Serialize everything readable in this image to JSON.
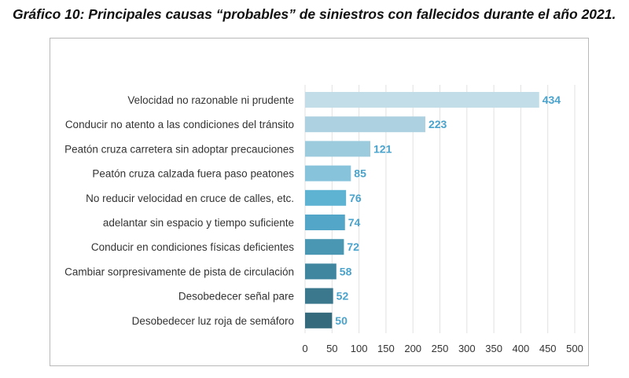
{
  "figure": {
    "title": "Gráfico 10: Principales causas “probables” de siniestros con fallecidos durante el año 2021."
  },
  "chart_data": {
    "type": "bar",
    "orientation": "horizontal",
    "categories": [
      "Velocidad no razonable ni prudente",
      "Conducir no atento a las condiciones del tránsito",
      "Peatón cruza carretera sin adoptar precauciones",
      "Peatón cruza calzada fuera paso peatones",
      "No reducir velocidad en cruce de calles, etc.",
      "adelantar sin espacio y tiempo suficiente",
      "Conducir en condiciones físicas deficientes",
      "Cambiar sorpresivamente de pista de circulación",
      "Desobedecer señal pare",
      "Desobedecer luz roja de semáforo"
    ],
    "values": [
      434,
      223,
      121,
      85,
      76,
      74,
      72,
      58,
      52,
      50
    ],
    "value_labels": [
      "434",
      "223",
      "121",
      "85",
      "76",
      "74",
      "72",
      "58",
      "52",
      "50"
    ],
    "bar_colors": [
      "#c2dce8",
      "#aed1e1",
      "#9ccbde",
      "#87c3db",
      "#5fb3d2",
      "#53a6c7",
      "#4a97b4",
      "#41869f",
      "#3b778d",
      "#356a7d"
    ],
    "value_label_color": "#4aa3cc",
    "xlim": [
      0,
      500
    ],
    "xticks": [
      "0",
      "50",
      "100",
      "150",
      "200",
      "250",
      "300",
      "350",
      "400",
      "450",
      "500"
    ],
    "xtick_values": [
      0,
      50,
      100,
      150,
      200,
      250,
      300,
      350,
      400,
      450,
      500
    ],
    "grid": true,
    "title": "",
    "xlabel": "",
    "ylabel": ""
  }
}
